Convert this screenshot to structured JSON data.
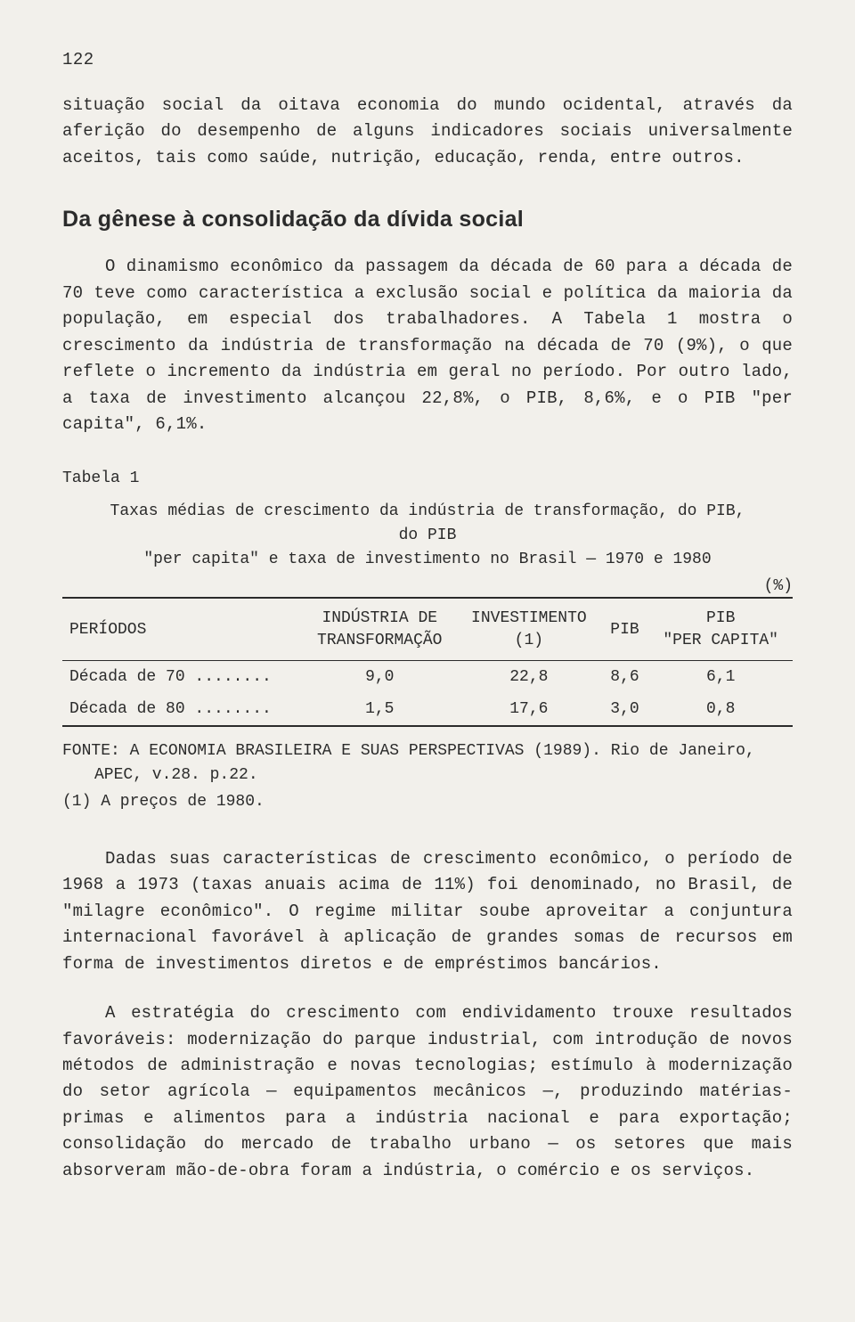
{
  "page_number": "122",
  "para1": "situação social da oitava economia do mundo ocidental, através da aferição do desempenho de alguns indicadores sociais universalmente aceitos, tais como saúde, nutrição, educação, renda, entre outros.",
  "heading": "Da gênese à consolidação da dívida social",
  "para2": "O dinamismo econômico da passagem da década de 60 para a década de 70 teve como característica a exclusão social e política da maioria da população, em especial dos trabalhadores. A Tabela 1 mostra o crescimento da indústria de transformação na década de 70 (9%), o que reflete o incremento da indústria em geral no período. Por outro lado, a taxa de investimento alcançou 22,8%, o PIB, 8,6%, e o PIB \"per capita\", 6,1%.",
  "table": {
    "label": "Tabela 1",
    "caption_line1": "Taxas médias de crescimento da indústria de transformação, do PIB, do PIB",
    "caption_line2": "\"per capita\" e taxa de investimento no Brasil — 1970 e 1980",
    "unit": "(%)",
    "columns": {
      "c0": "PERÍODOS",
      "c1a": "INDÚSTRIA DE",
      "c1b": "TRANSFORMAÇÃO",
      "c2a": "INVESTIMENTO",
      "c2b": "(1)",
      "c3": "PIB",
      "c4a": "PIB",
      "c4b": "\"PER CAPITA\""
    },
    "rows": [
      {
        "periodo": "Década de 70 ........",
        "ind": "9,0",
        "inv": "22,8",
        "pib": "8,6",
        "pc": "6,1"
      },
      {
        "periodo": "Década de 80 ........",
        "ind": "1,5",
        "inv": "17,6",
        "pib": "3,0",
        "pc": "0,8"
      }
    ],
    "fonte": "FONTE: A ECONOMIA BRASILEIRA E SUAS PERSPECTIVAS (1989). Rio de Janeiro, APEC, v.28. p.22.",
    "note": "(1) A preços de 1980."
  },
  "para3": "Dadas suas características de crescimento econômico, o período de 1968 a 1973 (taxas anuais acima de 11%) foi denominado, no Brasil, de \"milagre econômico\". O regime militar soube aproveitar a conjuntura internacional favorável à aplicação de grandes somas de recursos em forma de investimentos diretos e de empréstimos bancários.",
  "para4": "A estratégia do crescimento com endividamento trouxe resultados favoráveis: modernização do parque industrial, com introdução de novos métodos de administração e novas tecnologias; estímulo à modernização do setor agrícola — equipamentos mecânicos —, produzindo matérias-primas e alimentos para a indústria nacional e para exportação; consolidação do mercado de trabalho urbano — os setores que mais absorveram mão-de-obra foram a indústria, o comércio e os serviços."
}
